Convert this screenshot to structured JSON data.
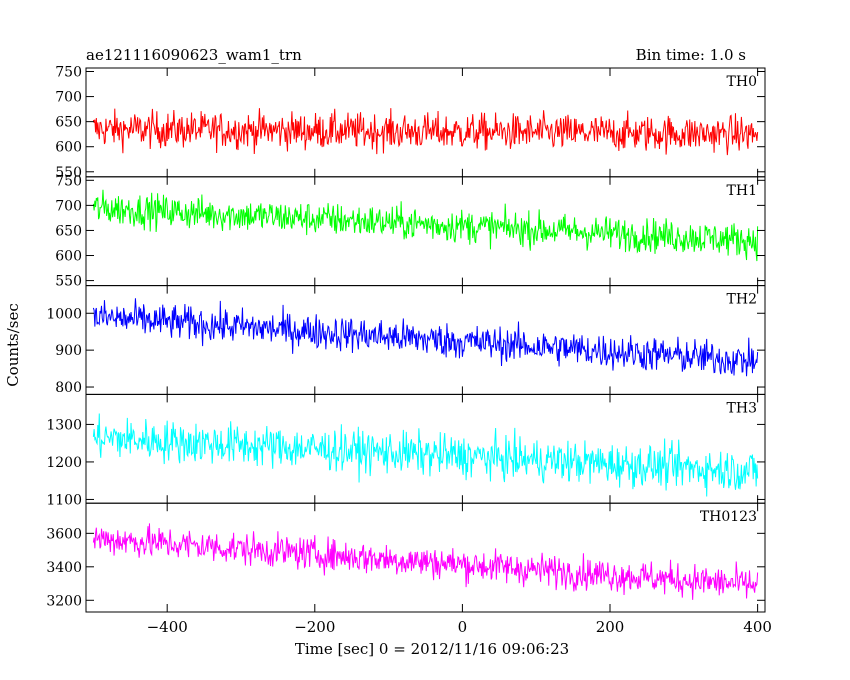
{
  "chart_data": {
    "type": "line",
    "title": "ae121116090623_wam1_trn",
    "bin_time_label": "Bin time: 1.0 s",
    "xlabel": "Time [sec] 0 = 2012/11/16 09:06:23",
    "ylabel": "Counts/sec",
    "xlim": [
      -510,
      410
    ],
    "x_ticks": [
      -400,
      -200,
      0,
      200,
      400
    ],
    "x_tick_labels": [
      "−400",
      "−200",
      "0",
      "200",
      "400"
    ],
    "series_x_range": [
      -500,
      400
    ],
    "panels": [
      {
        "name": "TH0",
        "color": "#ff0000",
        "ylim": [
          540,
          757
        ],
        "y_ticks": [
          550,
          600,
          650,
          700,
          750
        ],
        "trend_start": 635,
        "trend_end": 625,
        "noise": 26
      },
      {
        "name": "TH1",
        "color": "#00ff00",
        "ylim": [
          540,
          757
        ],
        "y_ticks": [
          550,
          600,
          650,
          700,
          750
        ],
        "trend_start": 695,
        "trend_end": 630,
        "noise": 24
      },
      {
        "name": "TH2",
        "color": "#0000ff",
        "ylim": [
          780,
          1075
        ],
        "y_ticks": [
          800,
          900,
          1000
        ],
        "trend_start": 990,
        "trend_end": 870,
        "noise": 34
      },
      {
        "name": "TH3",
        "color": "#00ffff",
        "ylim": [
          1090,
          1380
        ],
        "y_ticks": [
          1100,
          1200,
          1300
        ],
        "trend_start": 1265,
        "trend_end": 1175,
        "noise": 40
      },
      {
        "name": "TH0123",
        "color": "#ff00ff",
        "ylim": [
          3130,
          3780
        ],
        "y_ticks": [
          3200,
          3400,
          3600
        ],
        "trend_start": 3570,
        "trend_end": 3290,
        "noise": 70
      }
    ]
  }
}
